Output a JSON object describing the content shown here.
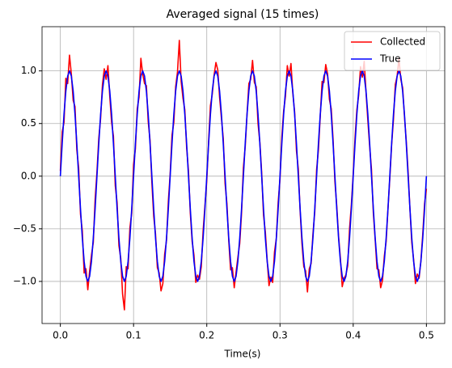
{
  "chart_data": {
    "type": "line",
    "title": "Averaged signal (15 times)",
    "x_label": "Time(s)",
    "x": [
      0,
      0.0025,
      0.005,
      0.0075,
      0.01,
      0.0125,
      0.015,
      0.0175,
      0.02,
      0.0225,
      0.025,
      0.0275,
      0.03,
      0.0325,
      0.035,
      0.0375,
      0.04,
      0.0425,
      0.045,
      0.0475,
      0.05,
      0.0525,
      0.055,
      0.0575,
      0.06,
      0.0625,
      0.065,
      0.0675,
      0.07,
      0.0725,
      0.075,
      0.0775,
      0.08,
      0.0825,
      0.085,
      0.0875,
      0.09,
      0.0925,
      0.095,
      0.0975,
      0.1,
      0.1025,
      0.105,
      0.1075,
      0.11,
      0.1125,
      0.115,
      0.1175,
      0.12,
      0.1225,
      0.125,
      0.1275,
      0.13,
      0.1325,
      0.135,
      0.1375,
      0.14,
      0.1425,
      0.145,
      0.1475,
      0.15,
      0.1525,
      0.155,
      0.1575,
      0.16,
      0.1625,
      0.165,
      0.1675,
      0.17,
      0.1725,
      0.175,
      0.1775,
      0.18,
      0.1825,
      0.185,
      0.1875,
      0.19,
      0.1925,
      0.195,
      0.1975,
      0.2,
      0.2025,
      0.205,
      0.2075,
      0.21,
      0.2125,
      0.215,
      0.2175,
      0.22,
      0.2225,
      0.225,
      0.2275,
      0.23,
      0.2325,
      0.235,
      0.2375,
      0.24,
      0.2425,
      0.245,
      0.2475,
      0.25,
      0.2525,
      0.255,
      0.2575,
      0.26,
      0.2625,
      0.265,
      0.2675,
      0.27,
      0.2725,
      0.275,
      0.2775,
      0.28,
      0.2825,
      0.285,
      0.2875,
      0.29,
      0.2925,
      0.295,
      0.2975,
      0.3,
      0.3025,
      0.305,
      0.3075,
      0.31,
      0.3125,
      0.315,
      0.3175,
      0.32,
      0.3225,
      0.325,
      0.3275,
      0.33,
      0.3325,
      0.335,
      0.3375,
      0.34,
      0.3425,
      0.345,
      0.3475,
      0.35,
      0.3525,
      0.355,
      0.3575,
      0.36,
      0.3625,
      0.365,
      0.3675,
      0.37,
      0.3725,
      0.375,
      0.3775,
      0.38,
      0.3825,
      0.385,
      0.3875,
      0.39,
      0.3925,
      0.395,
      0.3975,
      0.4,
      0.4025,
      0.405,
      0.4075,
      0.41,
      0.4125,
      0.415,
      0.4175,
      0.42,
      0.4225,
      0.425,
      0.4275,
      0.43,
      0.4325,
      0.435,
      0.4375,
      0.44,
      0.4425,
      0.445,
      0.4475,
      0.45,
      0.4525,
      0.455,
      0.4575,
      0.46,
      0.4625,
      0.465,
      0.4675,
      0.47,
      0.4725,
      0.475,
      0.4775,
      0.48,
      0.4825,
      0.485,
      0.4875,
      0.49,
      0.4925,
      0.495,
      0.4975,
      0.5
    ],
    "series": [
      {
        "name": "Collected",
        "color": "#ff0000",
        "values": [
          0.05,
          0.42,
          0.51,
          0.93,
          0.88,
          1.15,
          0.97,
          0.72,
          0.66,
          0.25,
          0.08,
          -0.36,
          -0.52,
          -0.92,
          -0.88,
          -1.08,
          -0.9,
          -0.75,
          -0.63,
          -0.22,
          0.04,
          0.36,
          0.55,
          0.87,
          1.02,
          0.92,
          1.05,
          0.76,
          0.51,
          0.38,
          -0.09,
          -0.25,
          -0.66,
          -0.78,
          -1.12,
          -1.27,
          -0.86,
          -0.88,
          -0.49,
          -0.35,
          0.11,
          0.26,
          0.64,
          0.75,
          1.12,
          0.97,
          0.88,
          0.86,
          0.52,
          0.34,
          -0.06,
          -0.38,
          -0.55,
          -0.87,
          -0.92,
          -1.09,
          -1.02,
          -0.74,
          -0.61,
          -0.24,
          0.02,
          0.39,
          0.51,
          0.85,
          0.99,
          1.29,
          0.9,
          0.74,
          0.63,
          0.27,
          0.05,
          -0.35,
          -0.62,
          -0.75,
          -1.01,
          -0.94,
          -0.98,
          -0.86,
          -0.52,
          -0.28,
          -0.04,
          0.33,
          0.67,
          0.78,
          0.96,
          1.08,
          1.01,
          0.75,
          0.55,
          0.36,
          -0.07,
          -0.26,
          -0.61,
          -0.89,
          -0.87,
          -1.06,
          -0.91,
          -0.77,
          -0.64,
          -0.35,
          0.08,
          0.28,
          0.59,
          0.88,
          0.92,
          1.1,
          0.89,
          0.85,
          0.5,
          0.32,
          0.03,
          -0.37,
          -0.53,
          -0.8,
          -1.04,
          -0.96,
          -1.01,
          -0.72,
          -0.59,
          -0.25,
          -0.03,
          0.37,
          0.62,
          0.76,
          1.05,
          0.95,
          1.07,
          0.79,
          0.61,
          0.24,
          0.07,
          -0.33,
          -0.64,
          -0.86,
          -0.9,
          -1.1,
          -0.88,
          -0.83,
          -0.55,
          -0.34,
          0.06,
          0.25,
          0.57,
          0.9,
          0.89,
          1.06,
          0.97,
          0.73,
          0.64,
          0.35,
          -0.05,
          -0.28,
          -0.57,
          -0.78,
          -1.05,
          -0.97,
          -0.94,
          -0.85,
          -0.5,
          -0.27,
          0.02,
          0.36,
          0.63,
          0.77,
          1.04,
          0.94,
          1.09,
          0.8,
          0.53,
          0.28,
          0.06,
          -0.35,
          -0.6,
          -0.88,
          -0.89,
          -1.06,
          -0.99,
          -0.76,
          -0.62,
          -0.31,
          -0.02,
          0.3,
          0.54,
          0.87,
          0.95,
          1.12,
          0.92,
          0.84,
          0.57,
          0.33,
          0.04,
          -0.31,
          -0.63,
          -0.79,
          -1.02,
          -0.93,
          -0.97,
          -0.8,
          -0.55,
          -0.26,
          -0.12
        ]
      },
      {
        "name": "True",
        "color": "#0000ff",
        "values": [
          0,
          0.309,
          0.588,
          0.809,
          0.951,
          1,
          0.951,
          0.809,
          0.588,
          0.309,
          0,
          -0.309,
          -0.588,
          -0.809,
          -0.951,
          -1,
          -0.951,
          -0.809,
          -0.588,
          -0.309,
          0,
          0.309,
          0.588,
          0.809,
          0.951,
          1,
          0.951,
          0.809,
          0.588,
          0.309,
          0,
          -0.309,
          -0.588,
          -0.809,
          -0.951,
          -1,
          -0.951,
          -0.809,
          -0.588,
          -0.309,
          0,
          0.309,
          0.588,
          0.809,
          0.951,
          1,
          0.951,
          0.809,
          0.588,
          0.309,
          0,
          -0.309,
          -0.588,
          -0.809,
          -0.951,
          -1,
          -0.951,
          -0.809,
          -0.588,
          -0.309,
          0,
          0.309,
          0.588,
          0.809,
          0.951,
          1,
          0.951,
          0.809,
          0.588,
          0.309,
          0,
          -0.309,
          -0.588,
          -0.809,
          -0.951,
          -1,
          -0.951,
          -0.809,
          -0.588,
          -0.309,
          0,
          0.309,
          0.588,
          0.809,
          0.951,
          1,
          0.951,
          0.809,
          0.588,
          0.309,
          0,
          -0.309,
          -0.588,
          -0.809,
          -0.951,
          -1,
          -0.951,
          -0.809,
          -0.588,
          -0.309,
          0,
          0.309,
          0.588,
          0.809,
          0.951,
          1,
          0.951,
          0.809,
          0.588,
          0.309,
          0,
          -0.309,
          -0.588,
          -0.809,
          -0.951,
          -1,
          -0.951,
          -0.809,
          -0.588,
          -0.309,
          0,
          0.309,
          0.588,
          0.809,
          0.951,
          1,
          0.951,
          0.809,
          0.588,
          0.309,
          0,
          -0.309,
          -0.588,
          -0.809,
          -0.951,
          -1,
          -0.951,
          -0.809,
          -0.588,
          -0.309,
          0,
          0.309,
          0.588,
          0.809,
          0.951,
          1,
          0.951,
          0.809,
          0.588,
          0.309,
          0,
          -0.309,
          -0.588,
          -0.809,
          -0.951,
          -1,
          -0.951,
          -0.809,
          -0.588,
          -0.309,
          0,
          0.309,
          0.588,
          0.809,
          0.951,
          1,
          0.951,
          0.809,
          0.588,
          0.309,
          0,
          -0.309,
          -0.588,
          -0.809,
          -0.951,
          -1,
          -0.951,
          -0.809,
          -0.588,
          -0.309,
          0,
          0.309,
          0.588,
          0.809,
          0.951,
          1,
          0.951,
          0.809,
          0.588,
          0.309,
          0,
          -0.309,
          -0.588,
          -0.809,
          -0.951,
          -1,
          -0.951,
          -0.809,
          -0.588,
          -0.309,
          0
        ]
      }
    ],
    "xlim": [
      -0.025,
      0.525
    ],
    "xticks": [
      {
        "value": 0,
        "label": "0.0"
      },
      0.1,
      0.2,
      0.3,
      0.4,
      0.5
    ],
    "ylim": [
      -1.4,
      1.42
    ],
    "yticks": [
      {
        "value": -1,
        "label": "−1.0"
      },
      {
        "value": -0.5,
        "label": "−0.5"
      },
      {
        "value": 0,
        "label": "0.0"
      },
      0.5,
      {
        "value": 1,
        "label": "1.0"
      }
    ],
    "grid": true,
    "legend": "upper right"
  }
}
